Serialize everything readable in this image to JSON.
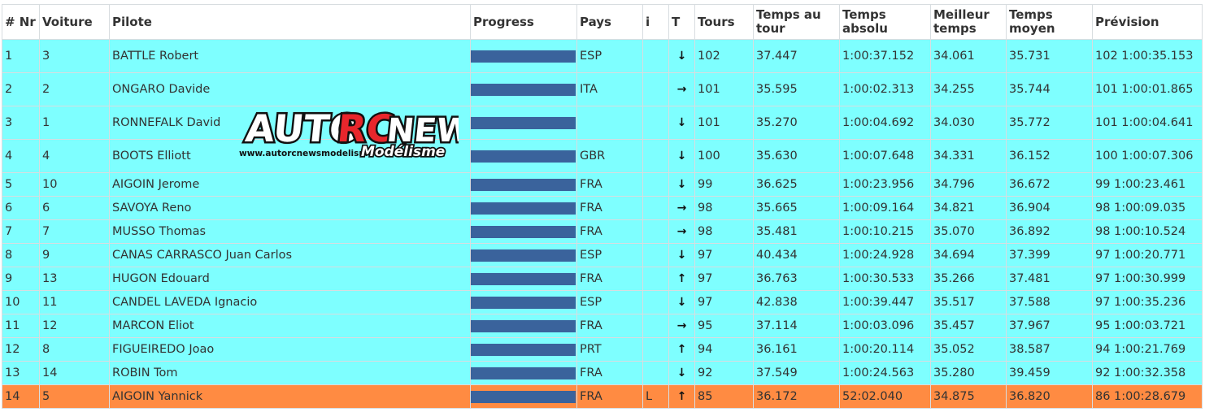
{
  "header": {
    "rank": "# Nr",
    "car": "Voiture",
    "driver": "Pilote",
    "progress": "Progress",
    "country": "Pays",
    "info": "i",
    "trend": "T",
    "laps": "Tours",
    "lap_time": "Temps au tour",
    "abs_time": "Temps absolu",
    "best_time": "Meilleur temps",
    "avg_time": "Temps moyen",
    "forecast": "Prévision"
  },
  "logo": {
    "text": "AUTO RC NEWS",
    "subtitle": "Modélisme",
    "url": "www.autorcnewsmodelisme.fr"
  },
  "colors": {
    "row_bg": "#7effff",
    "highlight_bg": "#ff8b42",
    "progress_bar": "#3a639c"
  },
  "rows": [
    {
      "pos": "1",
      "car": "3",
      "driver": "BATTLE Robert",
      "progress": 1.0,
      "country": "ESP",
      "info": "",
      "trend": "down",
      "laps": "102",
      "lap_time": "37.447",
      "abs_time": "1:00:37.152",
      "best_time": "34.061",
      "avg_time": "35.731",
      "forecast": "102 1:00:35.153"
    },
    {
      "pos": "2",
      "car": "2",
      "driver": "ONGARO Davide",
      "progress": 1.0,
      "country": "ITA",
      "info": "",
      "trend": "right",
      "laps": "101",
      "lap_time": "35.595",
      "abs_time": "1:00:02.313",
      "best_time": "34.255",
      "avg_time": "35.744",
      "forecast": "101 1:00:01.865"
    },
    {
      "pos": "3",
      "car": "1",
      "driver": "RONNEFALK David",
      "progress": 1.0,
      "country": "",
      "info": "",
      "trend": "down",
      "laps": "101",
      "lap_time": "35.270",
      "abs_time": "1:00:04.692",
      "best_time": "34.030",
      "avg_time": "35.772",
      "forecast": "101 1:00:04.641"
    },
    {
      "pos": "4",
      "car": "4",
      "driver": "BOOTS Elliott",
      "progress": 1.0,
      "country": "GBR",
      "info": "",
      "trend": "down",
      "laps": "100",
      "lap_time": "35.630",
      "abs_time": "1:00:07.648",
      "best_time": "34.331",
      "avg_time": "36.152",
      "forecast": "100 1:00:07.306"
    },
    {
      "pos": "5",
      "car": "10",
      "driver": "AIGOIN Jerome",
      "progress": 1.0,
      "country": "FRA",
      "info": "",
      "trend": "down",
      "laps": "99",
      "lap_time": "36.625",
      "abs_time": "1:00:23.956",
      "best_time": "34.796",
      "avg_time": "36.672",
      "forecast": "99 1:00:23.461"
    },
    {
      "pos": "6",
      "car": "6",
      "driver": "SAVOYA Reno",
      "progress": 1.0,
      "country": "FRA",
      "info": "",
      "trend": "right",
      "laps": "98",
      "lap_time": "35.665",
      "abs_time": "1:00:09.164",
      "best_time": "34.821",
      "avg_time": "36.904",
      "forecast": "98 1:00:09.035"
    },
    {
      "pos": "7",
      "car": "7",
      "driver": "MUSSO Thomas",
      "progress": 1.0,
      "country": "FRA",
      "info": "",
      "trend": "right",
      "laps": "98",
      "lap_time": "35.481",
      "abs_time": "1:00:10.215",
      "best_time": "35.070",
      "avg_time": "36.892",
      "forecast": "98 1:00:10.524"
    },
    {
      "pos": "8",
      "car": "9",
      "driver": "CANAS CARRASCO Juan Carlos",
      "progress": 1.0,
      "country": "ESP",
      "info": "",
      "trend": "down",
      "laps": "97",
      "lap_time": "40.434",
      "abs_time": "1:00:24.928",
      "best_time": "34.694",
      "avg_time": "37.399",
      "forecast": "97 1:00:20.771"
    },
    {
      "pos": "9",
      "car": "13",
      "driver": "HUGON Edouard",
      "progress": 1.0,
      "country": "FRA",
      "info": "",
      "trend": "up",
      "laps": "97",
      "lap_time": "36.763",
      "abs_time": "1:00:30.533",
      "best_time": "35.266",
      "avg_time": "37.481",
      "forecast": "97 1:00:30.999"
    },
    {
      "pos": "10",
      "car": "11",
      "driver": "CANDEL LAVEDA Ignacio",
      "progress": 1.0,
      "country": "ESP",
      "info": "",
      "trend": "down",
      "laps": "97",
      "lap_time": "42.838",
      "abs_time": "1:00:39.447",
      "best_time": "35.517",
      "avg_time": "37.588",
      "forecast": "97 1:00:35.236"
    },
    {
      "pos": "11",
      "car": "12",
      "driver": "MARCON Eliot",
      "progress": 1.0,
      "country": "FRA",
      "info": "",
      "trend": "right",
      "laps": "95",
      "lap_time": "37.114",
      "abs_time": "1:00:03.096",
      "best_time": "35.457",
      "avg_time": "37.967",
      "forecast": "95 1:00:03.721"
    },
    {
      "pos": "12",
      "car": "8",
      "driver": "FIGUEIREDO Joao",
      "progress": 1.0,
      "country": "PRT",
      "info": "",
      "trend": "up",
      "laps": "94",
      "lap_time": "36.161",
      "abs_time": "1:00:20.114",
      "best_time": "35.052",
      "avg_time": "38.587",
      "forecast": "94 1:00:21.769"
    },
    {
      "pos": "13",
      "car": "14",
      "driver": "ROBIN Tom",
      "progress": 1.0,
      "country": "FRA",
      "info": "",
      "trend": "down",
      "laps": "92",
      "lap_time": "37.549",
      "abs_time": "1:00:24.563",
      "best_time": "35.280",
      "avg_time": "39.459",
      "forecast": "92 1:00:32.358"
    },
    {
      "pos": "14",
      "car": "5",
      "driver": "AIGOIN Yannick",
      "progress": 1.0,
      "country": "FRA",
      "info": "L",
      "trend": "up",
      "laps": "85",
      "lap_time": "36.172",
      "abs_time": "52:02.040",
      "best_time": "34.875",
      "avg_time": "36.820",
      "forecast": "86 1:00:28.679",
      "highlight": true
    }
  ]
}
